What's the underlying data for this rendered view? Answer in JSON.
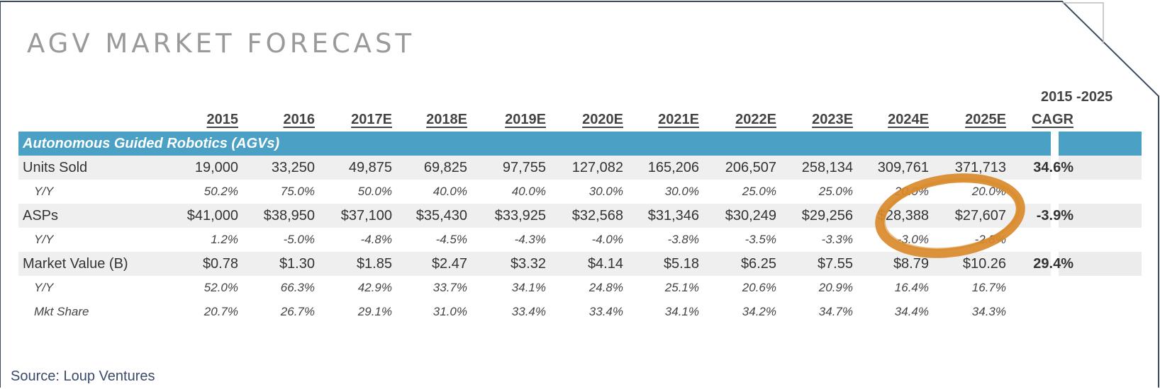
{
  "title": "AGV MARKET FORECAST",
  "source": "Source: Loup Ventures",
  "cagr_header_top": "2015 -2025",
  "header": {
    "years": [
      "2015",
      "2016",
      "2017E",
      "2018E",
      "2019E",
      "2020E",
      "2021E",
      "2022E",
      "2023E",
      "2024E",
      "2025E"
    ],
    "cagr": "CAGR"
  },
  "section": "Autonomous Guided Robotics (AGVs)",
  "rows": [
    {
      "label": "Units Sold",
      "style": "main",
      "values": [
        "19,000",
        "33,250",
        "49,875",
        "69,825",
        "97,755",
        "127,082",
        "165,206",
        "206,507",
        "258,134",
        "309,761",
        "371,713"
      ],
      "cagr": "34.6%"
    },
    {
      "label": "Y/Y",
      "style": "sub",
      "values": [
        "50.2%",
        "75.0%",
        "50.0%",
        "40.0%",
        "40.0%",
        "30.0%",
        "30.0%",
        "25.0%",
        "25.0%",
        "20.0%",
        "20.0%"
      ],
      "cagr": ""
    },
    {
      "label": "ASPs",
      "style": "main",
      "values": [
        "$41,000",
        "$38,950",
        "$37,100",
        "$35,430",
        "$33,925",
        "$32,568",
        "$31,346",
        "$30,249",
        "$29,256",
        "$28,388",
        "$27,607"
      ],
      "cagr": "-3.9%"
    },
    {
      "label": "Y/Y",
      "style": "sub",
      "values": [
        "1.2%",
        "-5.0%",
        "-4.8%",
        "-4.5%",
        "-4.3%",
        "-4.0%",
        "-3.8%",
        "-3.5%",
        "-3.3%",
        "-3.0%",
        "-2.8%"
      ],
      "cagr": ""
    },
    {
      "label": "Market Value (B)",
      "style": "main",
      "values": [
        "$0.78",
        "$1.30",
        "$1.85",
        "$2.47",
        "$3.32",
        "$4.14",
        "$5.18",
        "$6.25",
        "$7.55",
        "$8.79",
        "$10.26"
      ],
      "cagr": "29.4%"
    },
    {
      "label": "Y/Y",
      "style": "sub",
      "values": [
        "52.0%",
        "66.3%",
        "42.9%",
        "33.7%",
        "34.1%",
        "24.8%",
        "25.1%",
        "20.6%",
        "20.9%",
        "16.4%",
        "16.7%"
      ],
      "cagr": ""
    },
    {
      "label": "Mkt Share",
      "style": "sub",
      "values": [
        "20.7%",
        "26.7%",
        "29.1%",
        "31.0%",
        "33.4%",
        "33.4%",
        "34.1%",
        "34.2%",
        "34.7%",
        "34.4%",
        "34.3%"
      ],
      "cagr": ""
    }
  ],
  "colors": {
    "accent": "#4aa0c5",
    "annotation": "#d98a2b",
    "frame": "#3d4a5c"
  }
}
